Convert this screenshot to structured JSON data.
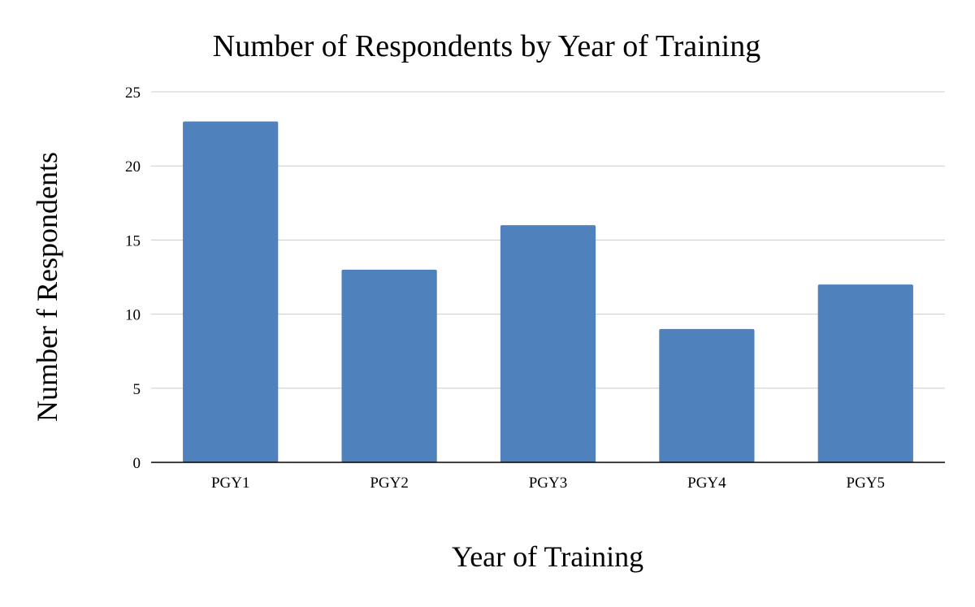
{
  "chart_data": {
    "type": "bar",
    "title": "Number of Respondents by Year of Training",
    "xlabel": "Year of Training",
    "ylabel": "Number f Respondents",
    "categories": [
      "PGY1",
      "PGY2",
      "PGY3",
      "PGY4",
      "PGY5"
    ],
    "values": [
      23,
      13,
      16,
      9,
      12
    ],
    "ylim": [
      0,
      25
    ],
    "yticks": [
      "0",
      "5",
      "10",
      "15",
      "20",
      "25"
    ],
    "grid": true,
    "legend": "none",
    "colors": {
      "bar": "#4f81bd",
      "grid": "#cccccc",
      "axis": "#000000"
    }
  }
}
